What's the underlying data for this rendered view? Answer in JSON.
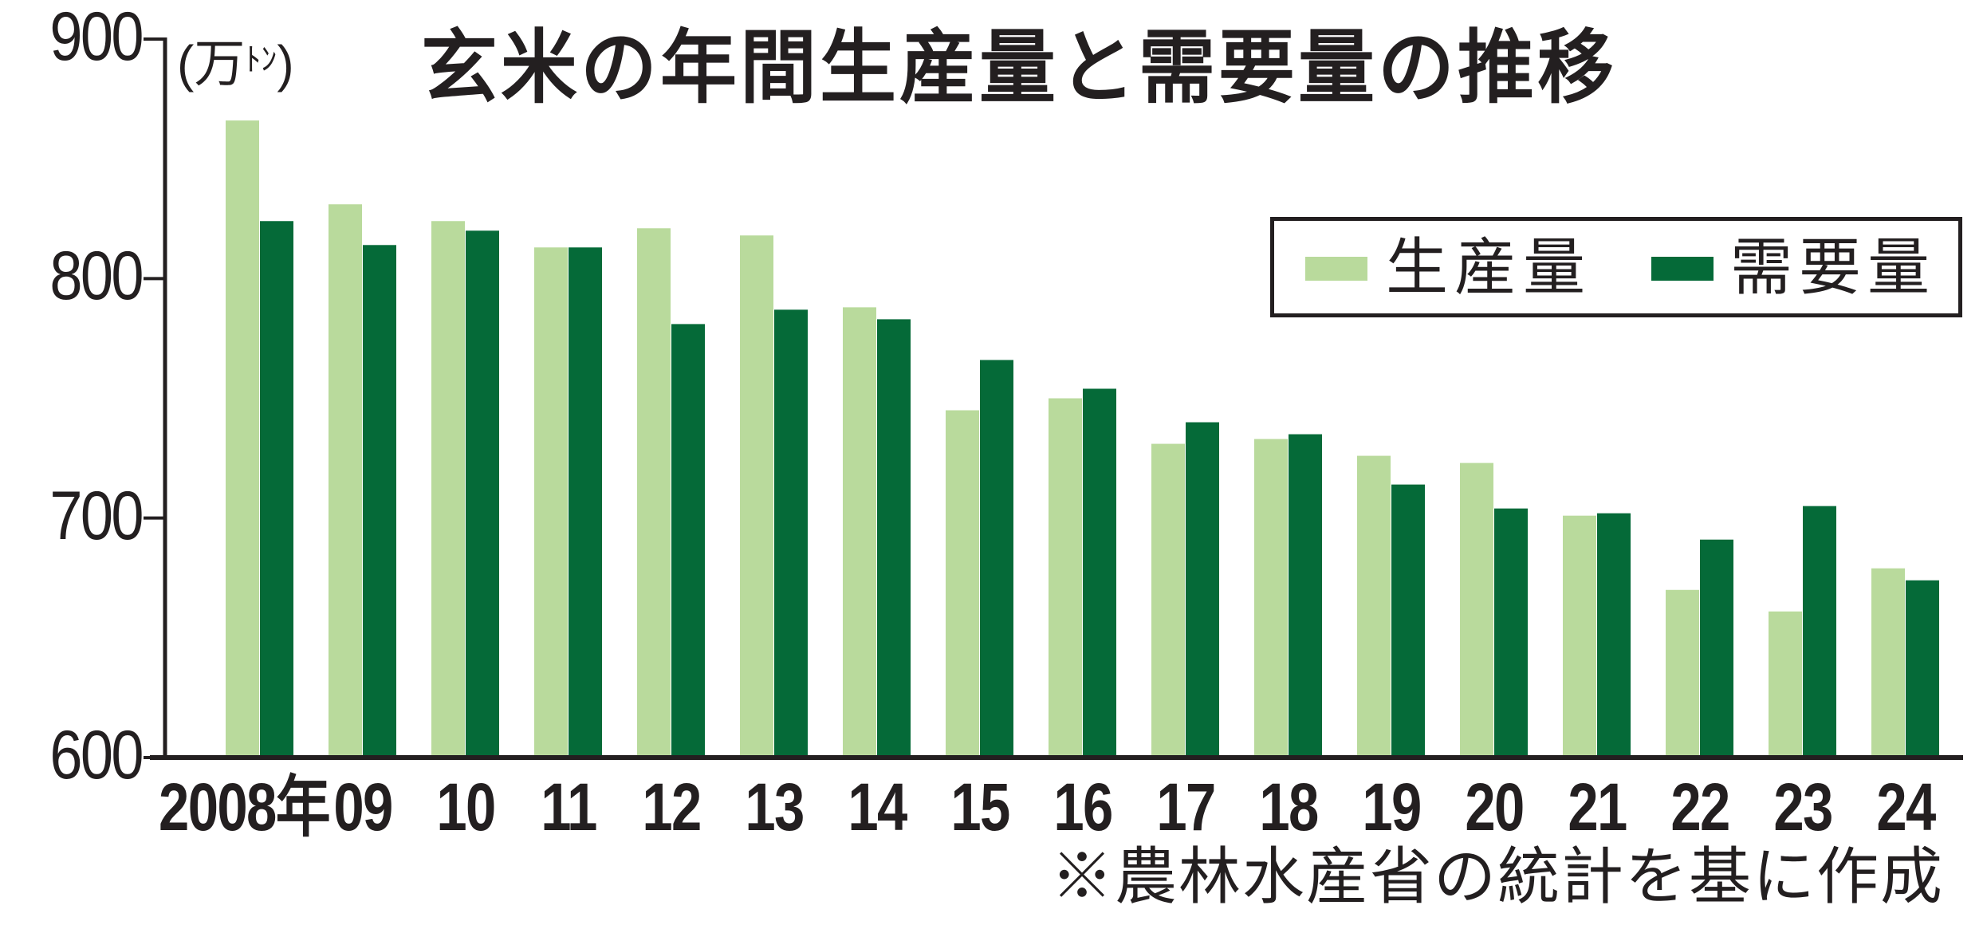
{
  "title": "玄米の年間生産量と需要量の推移",
  "unit_label": {
    "open": "(",
    "main": "万",
    "small": "ﾄﾝ",
    "close": ")"
  },
  "legend": {
    "items": [
      {
        "label": "生産量",
        "color": "#b9da9c"
      },
      {
        "label": "需要量",
        "color": "#056a38"
      }
    ]
  },
  "footnote": "※農林水産省の統計を基に作成",
  "colors": {
    "production": "#b9da9c",
    "demand": "#056a38",
    "axis": "#231f20",
    "text": "#231f20"
  },
  "chart_data": {
    "type": "bar",
    "title": "玄米の年間生産量と需要量の推移",
    "xlabel": "",
    "ylabel": "(万トン)",
    "ylim": [
      600,
      900
    ],
    "yticks": [
      600,
      700,
      800,
      900
    ],
    "grid": false,
    "legend_position": "upper right (boxed)",
    "categories": [
      "2008年",
      "09",
      "10",
      "11",
      "12",
      "13",
      "14",
      "15",
      "16",
      "17",
      "18",
      "19",
      "20",
      "21",
      "22",
      "23",
      "24"
    ],
    "series": [
      {
        "name": "生産量",
        "color": "#b9da9c",
        "values": [
          866,
          831,
          824,
          813,
          821,
          818,
          788,
          745,
          750,
          731,
          733,
          726,
          723,
          701,
          670,
          661,
          679
        ]
      },
      {
        "name": "需要量",
        "color": "#056a38",
        "values": [
          824,
          814,
          820,
          813,
          781,
          787,
          783,
          766,
          754,
          740,
          735,
          714,
          704,
          702,
          691,
          705,
          674
        ]
      }
    ],
    "source_note": "※農林水産省の統計を基に作成"
  }
}
